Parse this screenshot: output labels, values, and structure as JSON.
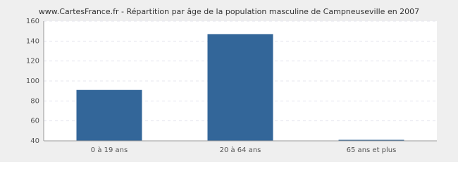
{
  "chart_data": {
    "type": "bar",
    "title": "www.CartesFrance.fr - Répartition par âge de la population masculine de Campneuseville en 2007",
    "categories": [
      "0 à 19 ans",
      "20 à 64 ans",
      "65 ans et plus"
    ],
    "values": [
      91,
      147,
      41
    ],
    "color": "#336699",
    "ylim": [
      40,
      160
    ],
    "yticks": [
      40,
      60,
      80,
      100,
      120,
      140,
      160
    ],
    "grid": true
  }
}
